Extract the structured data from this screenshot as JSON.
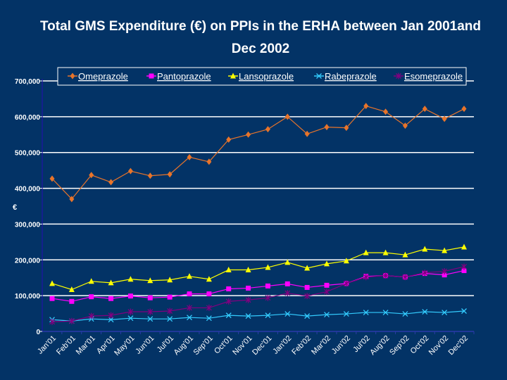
{
  "chart_data": {
    "type": "line",
    "title_line1": "Total GMS Expenditure (€) on PPIs in the ERHA between Jan 2001and",
    "title_line2": "Dec 2002",
    "xlabel": "",
    "ylabel": "€",
    "ylim": [
      0,
      700000
    ],
    "yticks": [
      0,
      100000,
      200000,
      300000,
      400000,
      500000,
      600000,
      700000
    ],
    "ytick_labels": [
      "0",
      "100,000",
      "200,000",
      "300,000",
      "400,000",
      "500,000",
      "600,000",
      "700,000"
    ],
    "grid": true,
    "legend_position": "top",
    "categories": [
      "Jan'01",
      "Feb'01",
      "Mar'01",
      "Apr'01",
      "May'01",
      "Jun'01",
      "Jul'01",
      "Aug'01",
      "Sep'01",
      "Oct'01",
      "Nov'01",
      "Dec'01",
      "Jan'02",
      "Feb'02",
      "Mar'02",
      "Jun'02",
      "Jul'02",
      "Aug'02",
      "Sep'02",
      "Oct'02",
      "Nov'02",
      "Dec'02"
    ],
    "series": [
      {
        "name": "Omeprazole",
        "color": "#E8742A",
        "marker": "diamond",
        "values": [
          427000,
          370000,
          437000,
          417000,
          448000,
          435000,
          439000,
          487000,
          474000,
          536000,
          550000,
          565000,
          600000,
          552000,
          571000,
          569000,
          630000,
          614000,
          575000,
          622000,
          594000,
          622000
        ]
      },
      {
        "name": "Pantoprazole",
        "color": "#FF00FF",
        "marker": "square",
        "values": [
          92000,
          84000,
          97000,
          92000,
          99000,
          94000,
          96000,
          105000,
          105000,
          119000,
          121000,
          127000,
          133000,
          123000,
          129000,
          134000,
          154000,
          156000,
          152000,
          162000,
          158000,
          170000
        ]
      },
      {
        "name": "Lansoprazole",
        "color": "#FFFF00",
        "marker": "triangle",
        "values": [
          134000,
          117000,
          140000,
          136000,
          146000,
          142000,
          144000,
          154000,
          146000,
          172000,
          172000,
          179000,
          193000,
          177000,
          189000,
          197000,
          220000,
          220000,
          214000,
          230000,
          226000,
          236000
        ]
      },
      {
        "name": "Rabeprazole",
        "color": "#33CCFF",
        "marker": "x",
        "values": [
          33000,
          29000,
          35000,
          33000,
          37000,
          35000,
          35000,
          39000,
          37000,
          45000,
          43000,
          45000,
          49000,
          43000,
          47000,
          49000,
          53000,
          53000,
          49000,
          55000,
          53000,
          57000
        ]
      },
      {
        "name": "Esomeprazole",
        "color": "#800080",
        "marker": "star",
        "values": [
          27000,
          29000,
          43000,
          45000,
          55000,
          55000,
          57000,
          66000,
          66000,
          84000,
          88000,
          94000,
          107000,
          99000,
          111000,
          134000,
          152000,
          156000,
          152000,
          164000,
          168000,
          181000
        ]
      }
    ]
  }
}
